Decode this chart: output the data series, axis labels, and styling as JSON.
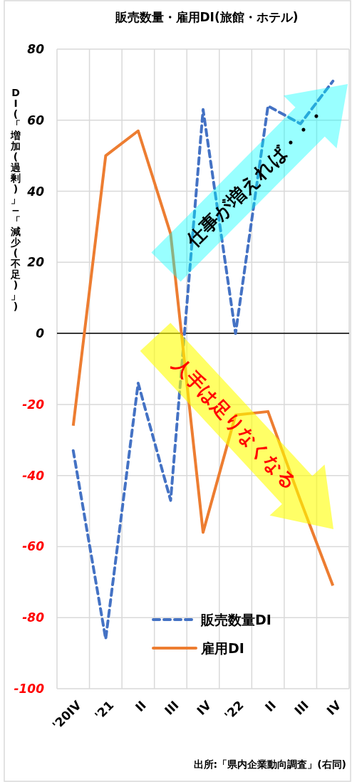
{
  "chart_data": {
    "type": "line",
    "title": "販売数量・雇用DI(旅館・ホテル)",
    "ylabel": "DI(「増加(過剰)」−「減少(不足)」)",
    "categories": [
      "'20IV",
      "'21",
      "II",
      "III",
      "IV",
      "'22",
      "II",
      "III",
      "IV"
    ],
    "series": [
      {
        "name": "販売数量DI",
        "color": "#4472c4",
        "line_style": "dashed",
        "values": [
          -33,
          -86,
          -14,
          -47,
          63,
          0,
          64,
          59,
          71
        ]
      },
      {
        "name": "雇用DI",
        "color": "#ed7d31",
        "line_style": "solid",
        "values": [
          -26,
          50,
          57,
          28,
          -56,
          -23,
          -22,
          -47,
          -71
        ]
      }
    ],
    "ylim": [
      -100,
      80
    ],
    "yticks": [
      {
        "value": -100,
        "label": "-100"
      },
      {
        "value": -80,
        "label": "-80"
      },
      {
        "value": -60,
        "label": "-60"
      },
      {
        "value": -40,
        "label": "-40"
      },
      {
        "value": -20,
        "label": "-20"
      },
      0,
      20,
      40,
      60,
      80
    ],
    "grid": true,
    "legend": "bottom",
    "annotations": [
      "仕事が増えれば・・・",
      "人手は足りなくなる",
      "出所:「県内企業動向調査」(右同)"
    ]
  }
}
